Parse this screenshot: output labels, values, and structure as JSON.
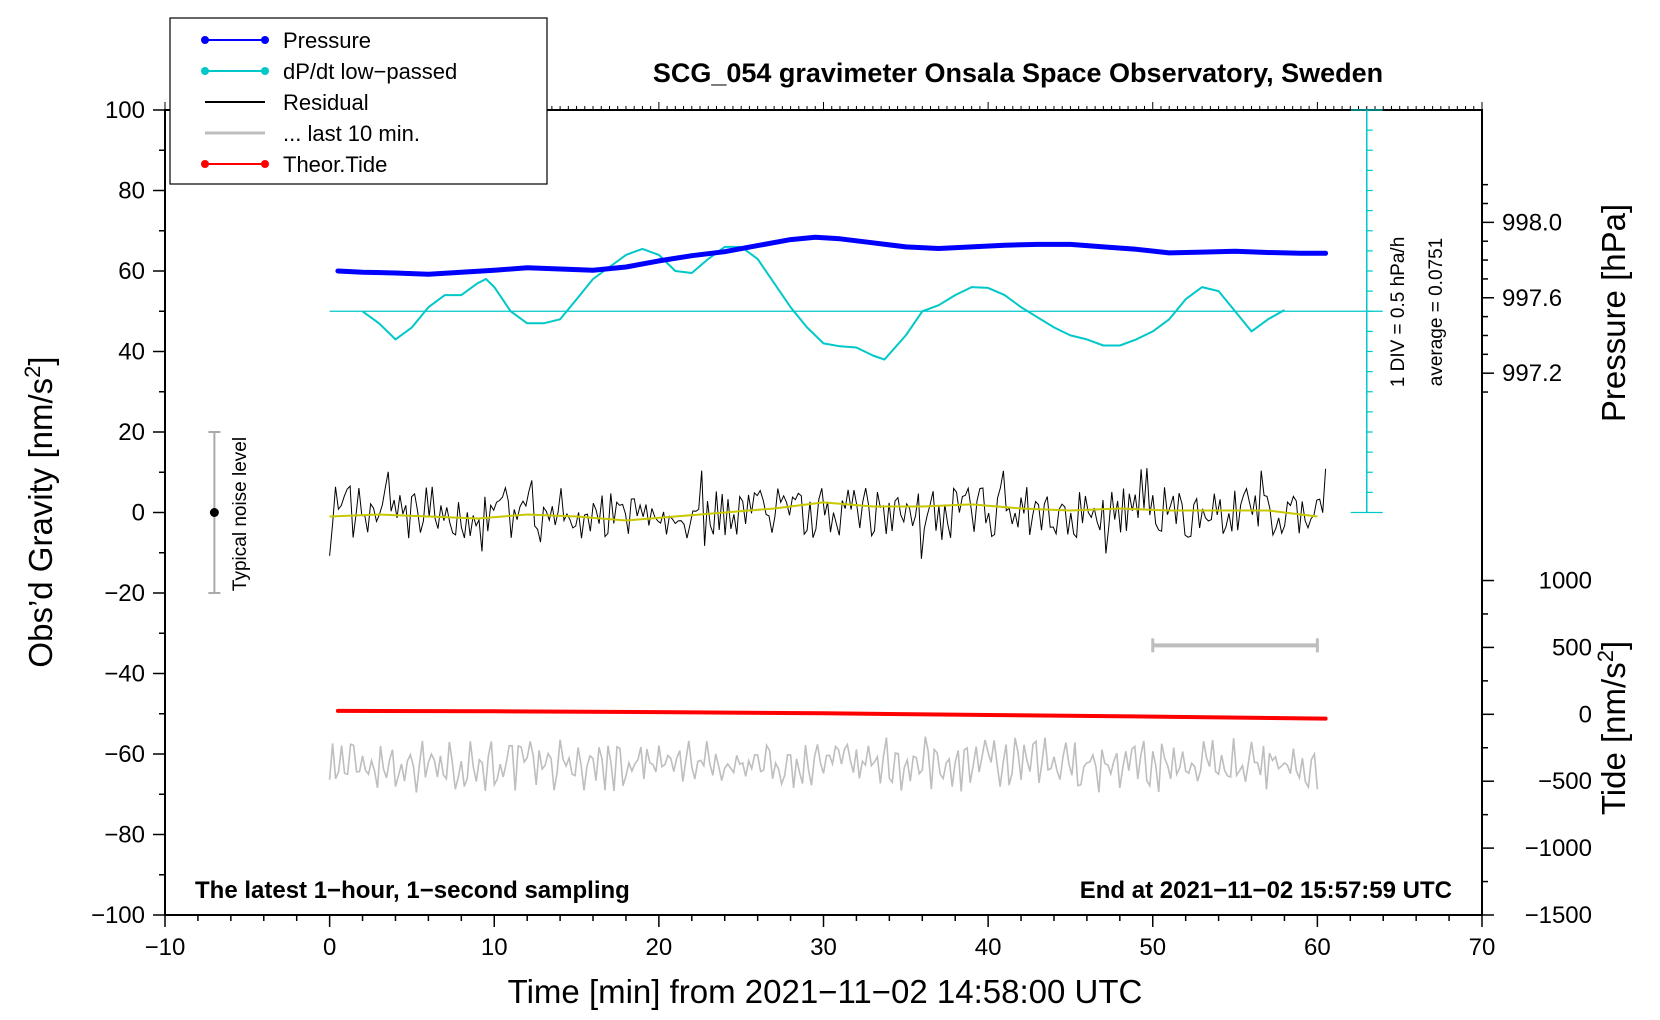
{
  "chart_data": {
    "type": "line",
    "title": "SCG_054 gravimeter Onsala Space Observatory, Sweden",
    "xlabel": "Time [min] from 2021−11−02 14:58:00 UTC",
    "ylabel": "Obs’d Gravity [nm/s",
    "ylabel_sup": "2",
    "ylabel_close": "]",
    "ylabel_right_pressure": "Pressure [hPa]",
    "ylabel_right_tide": "Tide [nm/s",
    "ylabel_right_tide_sup": "2",
    "ylabel_right_tide_close": "]",
    "xlim": [
      -10,
      70
    ],
    "ylim": [
      -100,
      100
    ],
    "x_ticks": [
      "−10",
      "0",
      "10",
      "20",
      "30",
      "40",
      "50",
      "60",
      "70"
    ],
    "x_tick_values": [
      -10,
      0,
      10,
      20,
      30,
      40,
      50,
      60,
      70
    ],
    "y_ticks": [
      "100",
      "80",
      "60",
      "40",
      "20",
      "0",
      "−20",
      "−40",
      "−60",
      "−80",
      "−100"
    ],
    "y_tick_values": [
      100,
      80,
      60,
      40,
      20,
      0,
      -20,
      -40,
      -60,
      -80,
      -100
    ],
    "pressure_ticks": [
      "998.0",
      "997.6",
      "997.2"
    ],
    "pressure_tick_values": [
      998.0,
      997.6,
      997.2
    ],
    "pressure_axis": {
      "pressure_at_y60": 997.742,
      "hpa_per_20_units": 0.427
    },
    "tide_ticks": [
      "1000",
      "500",
      "0",
      "−500",
      "−1000",
      "−1500"
    ],
    "tide_tick_values": [
      1000,
      500,
      0,
      -500,
      -1000,
      -1500
    ],
    "tide_axis": {
      "range": [
        -1500,
        1000
      ],
      "y_at_tide_1000": -16.9,
      "y_at_tide_minus1500": -100
    },
    "footer_left": "The latest 1−hour, 1−second sampling",
    "footer_right": "End at 2021−11−02 15:57:59 UTC",
    "dpdt_scale_label": "1 DIV = 0.5 hPa/h",
    "dpdt_average_label": "average = 0.0751",
    "dpdt_scale": {
      "x": 63,
      "y_top": 100,
      "y_bottom": 0,
      "divisions": 20
    },
    "dpdt_baseline_y": 50,
    "noise_label": "Typical noise level",
    "noise_bar": {
      "x": -7,
      "center": 0,
      "half_range": 20
    },
    "last10_bar": {
      "x_start": 50,
      "x_end": 60,
      "y": -33
    },
    "legend": [
      {
        "label": "Pressure",
        "color": "#0000ff",
        "marker": true
      },
      {
        "label": "dP/dt low−passed",
        "color": "#00c8c8",
        "marker": true
      },
      {
        "label": "Residual",
        "color": "#000000",
        "marker": false
      },
      {
        "label": "... last 10 min.",
        "color": "#bebebe",
        "marker": false
      },
      {
        "label": "Theor.Tide",
        "color": "#ff0000",
        "marker": true
      }
    ],
    "series": [
      {
        "name": "Pressure",
        "color": "#0000ff",
        "x": [
          0.5,
          2,
          4,
          6,
          8,
          10,
          12,
          14,
          16,
          18,
          20,
          22,
          24,
          26,
          28,
          29.5,
          31,
          33,
          35,
          37,
          39,
          41,
          43,
          45,
          47,
          49,
          51,
          53,
          55,
          57,
          59,
          60.5
        ],
        "y": [
          60,
          59.7,
          59.5,
          59.2,
          59.7,
          60.2,
          60.8,
          60.5,
          60.2,
          61,
          62.5,
          63.8,
          64.8,
          66.3,
          67.8,
          68.4,
          68,
          67,
          66,
          65.6,
          66,
          66.4,
          66.6,
          66.6,
          66,
          65.4,
          64.5,
          64.7,
          64.9,
          64.6,
          64.4,
          64.4
        ]
      },
      {
        "name": "dP/dt low−passed",
        "color": "#00c8c8",
        "x": [
          2,
          3,
          4,
          5,
          6,
          7,
          8,
          9,
          9.5,
          10,
          11,
          12,
          13,
          14,
          15,
          16,
          17,
          18,
          19,
          20,
          21,
          22,
          23,
          24,
          25,
          26,
          27,
          28,
          29,
          30,
          31,
          32,
          33,
          33.7,
          35,
          36,
          37,
          38,
          39,
          40,
          41,
          42,
          43,
          44,
          45,
          46,
          47,
          48,
          49,
          50,
          51,
          52,
          53,
          54,
          55,
          56,
          57,
          58
        ],
        "y": [
          50,
          47,
          43,
          46,
          51,
          54,
          54,
          57,
          58,
          56,
          50,
          47,
          47,
          48,
          53,
          58,
          61,
          64,
          65.5,
          64,
          60,
          59.5,
          63,
          66,
          66,
          63,
          57,
          51,
          46,
          42,
          41.3,
          41,
          39,
          38,
          44,
          50,
          51.5,
          54,
          56,
          55.8,
          54,
          51,
          48.5,
          46,
          44,
          43,
          41.5,
          41.5,
          43,
          45,
          48,
          53,
          56,
          55,
          50,
          45,
          48,
          50.3
        ]
      },
      {
        "name": "Residual",
        "color": "#000000",
        "x_range": [
          0,
          60.5
        ],
        "points": 340,
        "mean": 0,
        "std": 4
      },
      {
        "name": "Residual smoothed",
        "color": "#c8c800",
        "x": [
          0,
          3,
          6,
          9,
          12,
          15,
          18,
          21,
          24,
          27,
          30,
          33,
          36,
          39,
          42,
          45,
          48,
          51,
          54,
          57,
          60
        ],
        "y": [
          -1,
          -0.5,
          -1,
          -1.5,
          -0.5,
          -1,
          -2,
          -1,
          0,
          1,
          2.5,
          1.5,
          1.5,
          2,
          1,
          0.5,
          1,
          0.5,
          0.5,
          0.5,
          -1
        ]
      },
      {
        "name": "... last 10 min.",
        "color": "#bebebe",
        "x_range": [
          0,
          60
        ],
        "points": 330,
        "mean": -62.5,
        "amplitude": 6
      },
      {
        "name": "Theor.Tide",
        "color": "#ff0000",
        "x": [
          0.5,
          10,
          20,
          30,
          40,
          50,
          60.5
        ],
        "y": [
          -49.3,
          -49.4,
          -49.6,
          -49.9,
          -50.3,
          -50.7,
          -51.2
        ]
      }
    ]
  }
}
